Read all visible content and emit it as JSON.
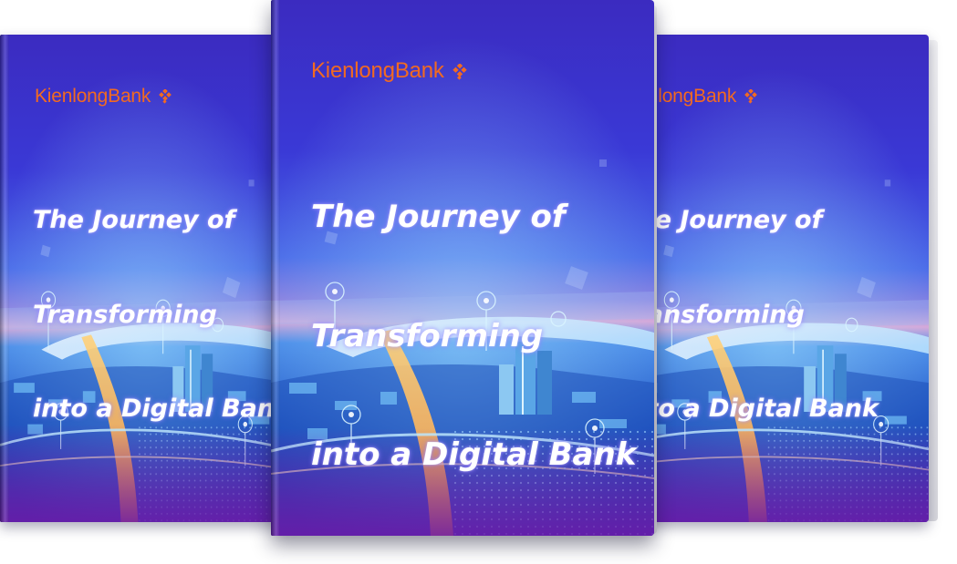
{
  "brand": {
    "name_part1": "Kienlong",
    "name_part2": "Bank",
    "mark_icon": "diamond-grid-icon"
  },
  "cover": {
    "title_line1": "The Journey of",
    "title_line2": "Transforming",
    "title_line3": "into a Digital Bank"
  },
  "colors": {
    "brand_orange": "#f26a21",
    "cover_top": "#3a2bbf",
    "cover_mid": "#2f63e0",
    "cover_bottom": "#6b1fa8"
  }
}
